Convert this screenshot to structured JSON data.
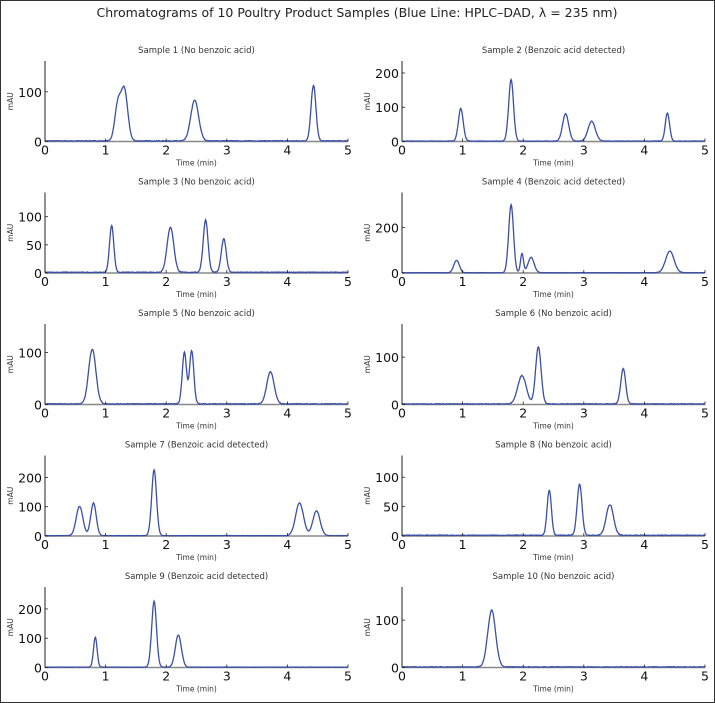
{
  "chart_data": {
    "type": "line",
    "title": "Chromatograms of 10 Poultry Product Samples (Blue Line: HPLC–DAD, λ = 235 nm)",
    "line_color": "#3a4fa8",
    "baseline_color": "#888888",
    "xlabel": "Time (min)",
    "ylabel": "mAU",
    "xlim": [
      0,
      5
    ],
    "xticks": [
      0,
      1,
      2,
      3,
      4,
      5
    ],
    "grid": false,
    "panels": [
      {
        "title": "Sample 1 (No benzoic acid)",
        "ylim": [
          0,
          162
        ],
        "yticks": [
          0,
          100
        ],
        "peaks": [
          {
            "rt": 1.2,
            "height": 70,
            "width": 0.05
          },
          {
            "rt": 1.31,
            "height": 102,
            "width": 0.055
          },
          {
            "rt": 2.47,
            "height": 82,
            "width": 0.065
          },
          {
            "rt": 4.43,
            "height": 112,
            "width": 0.04
          }
        ]
      },
      {
        "title": "Sample 2 (Benzoic acid detected)",
        "ylim": [
          0,
          235
        ],
        "yticks": [
          0,
          100,
          200
        ],
        "peaks": [
          {
            "rt": 0.97,
            "height": 95,
            "width": 0.04
          },
          {
            "rt": 1.8,
            "height": 180,
            "width": 0.04
          },
          {
            "rt": 2.7,
            "height": 80,
            "width": 0.05
          },
          {
            "rt": 3.13,
            "height": 58,
            "width": 0.06
          },
          {
            "rt": 4.38,
            "height": 82,
            "width": 0.035
          }
        ]
      },
      {
        "title": "Sample 3 (No benzoic acid)",
        "ylim": [
          0,
          143
        ],
        "yticks": [
          0,
          50,
          100
        ],
        "peaks": [
          {
            "rt": 1.1,
            "height": 83,
            "width": 0.035
          },
          {
            "rt": 2.07,
            "height": 80,
            "width": 0.055
          },
          {
            "rt": 2.65,
            "height": 93,
            "width": 0.04
          },
          {
            "rt": 2.95,
            "height": 60,
            "width": 0.04
          }
        ]
      },
      {
        "title": "Sample 4 (Benzoic acid detected)",
        "ylim": [
          0,
          355
        ],
        "yticks": [
          0,
          200
        ],
        "peaks": [
          {
            "rt": 0.9,
            "height": 55,
            "width": 0.045
          },
          {
            "rt": 1.8,
            "height": 300,
            "width": 0.04
          },
          {
            "rt": 1.98,
            "height": 85,
            "width": 0.025
          },
          {
            "rt": 2.13,
            "height": 68,
            "width": 0.05
          },
          {
            "rt": 4.42,
            "height": 95,
            "width": 0.07
          }
        ]
      },
      {
        "title": "Sample 5 (No benzoic acid)",
        "ylim": [
          0,
          155
        ],
        "yticks": [
          0,
          100
        ],
        "peaks": [
          {
            "rt": 0.78,
            "height": 105,
            "width": 0.06
          },
          {
            "rt": 2.3,
            "height": 100,
            "width": 0.035
          },
          {
            "rt": 2.42,
            "height": 102,
            "width": 0.035
          },
          {
            "rt": 3.72,
            "height": 62,
            "width": 0.06
          }
        ]
      },
      {
        "title": "Sample 6 (No benzoic acid)",
        "ylim": [
          0,
          170
        ],
        "yticks": [
          0,
          100
        ],
        "peaks": [
          {
            "rt": 1.98,
            "height": 60,
            "width": 0.07
          },
          {
            "rt": 2.25,
            "height": 120,
            "width": 0.045
          },
          {
            "rt": 3.65,
            "height": 75,
            "width": 0.04
          }
        ]
      },
      {
        "title": "Sample 7 (Benzoic acid detected)",
        "ylim": [
          0,
          275
        ],
        "yticks": [
          0,
          100,
          200
        ],
        "peaks": [
          {
            "rt": 0.57,
            "height": 100,
            "width": 0.055
          },
          {
            "rt": 0.8,
            "height": 112,
            "width": 0.045
          },
          {
            "rt": 1.8,
            "height": 225,
            "width": 0.04
          },
          {
            "rt": 4.2,
            "height": 112,
            "width": 0.065
          },
          {
            "rt": 4.48,
            "height": 85,
            "width": 0.06
          }
        ]
      },
      {
        "title": "Sample 8 (No benzoic acid)",
        "ylim": [
          0,
          137
        ],
        "yticks": [
          0,
          50,
          100
        ],
        "peaks": [
          {
            "rt": 2.43,
            "height": 77,
            "width": 0.035
          },
          {
            "rt": 2.93,
            "height": 87,
            "width": 0.04
          },
          {
            "rt": 3.43,
            "height": 52,
            "width": 0.06
          }
        ]
      },
      {
        "title": "Sample 9 (Benzoic acid detected)",
        "ylim": [
          0,
          275
        ],
        "yticks": [
          0,
          100,
          200
        ],
        "peaks": [
          {
            "rt": 0.83,
            "height": 102,
            "width": 0.03
          },
          {
            "rt": 1.8,
            "height": 225,
            "width": 0.04
          },
          {
            "rt": 2.2,
            "height": 110,
            "width": 0.05
          }
        ]
      },
      {
        "title": "Sample 10 (No benzoic acid)",
        "ylim": [
          0,
          170
        ],
        "yticks": [
          0,
          100
        ],
        "peaks": [
          {
            "rt": 1.48,
            "height": 120,
            "width": 0.065
          }
        ]
      }
    ]
  }
}
